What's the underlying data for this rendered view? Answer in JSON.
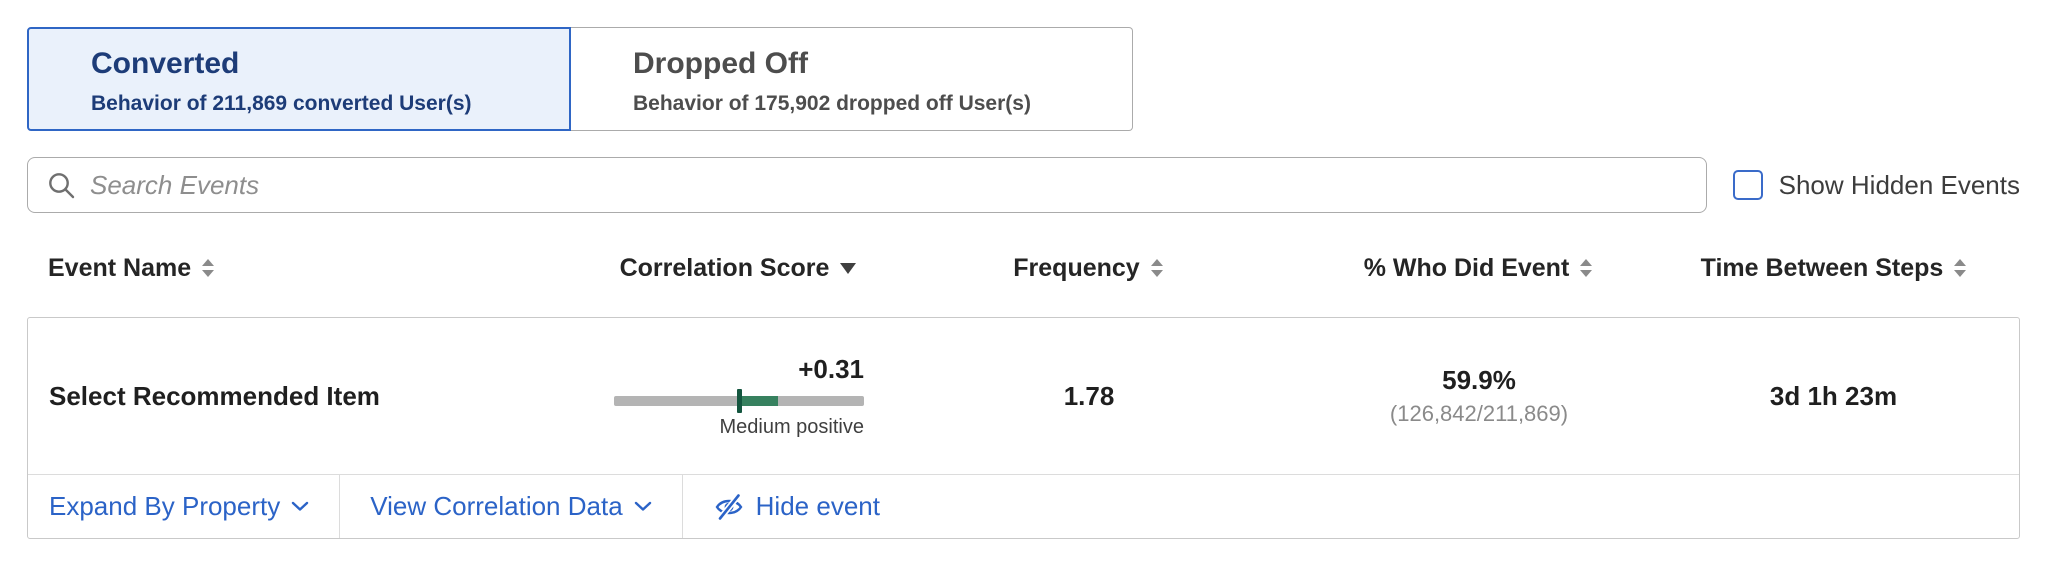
{
  "tabs": {
    "converted": {
      "title": "Converted",
      "subtitle": "Behavior of 211,869 converted User(s)",
      "active": true
    },
    "dropped_off": {
      "title": "Dropped Off",
      "subtitle": "Behavior of 175,902 dropped off User(s)",
      "active": false
    }
  },
  "search": {
    "placeholder": "Search Events"
  },
  "controls": {
    "show_hidden_label": "Show Hidden Events",
    "show_hidden_checked": false
  },
  "table": {
    "headers": [
      {
        "label": "Event Name",
        "sort": "none"
      },
      {
        "label": "Correlation Score",
        "sort": "desc"
      },
      {
        "label": "Frequency",
        "sort": "none"
      },
      {
        "label": "% Who Did Event",
        "sort": "none"
      },
      {
        "label": "Time Between Steps",
        "sort": "none"
      }
    ],
    "row": {
      "event_name": "Select Recommended Item",
      "correlation": {
        "score_label": "+0.31",
        "value": 0.31,
        "range": [
          -1,
          1
        ],
        "strength_label": "Medium positive"
      },
      "frequency": "1.78",
      "pct_who_did": "59.9%",
      "pct_who_did_detail": "(126,842/211,869)",
      "time_between_steps": "3d 1h 23m"
    },
    "row_actions": {
      "expand_by_property": "Expand By Property",
      "view_correlation": "View Correlation Data",
      "hide_event": "Hide event"
    }
  },
  "colors": {
    "link_blue": "#2B63C7",
    "tab_active_text": "#1D3C78",
    "tab_active_bg": "#EAF1FB",
    "tab_active_border": "#2F66C5",
    "correlation_track": "#B4B4B4",
    "correlation_fill": "#37815F",
    "correlation_tick": "#14563F"
  }
}
